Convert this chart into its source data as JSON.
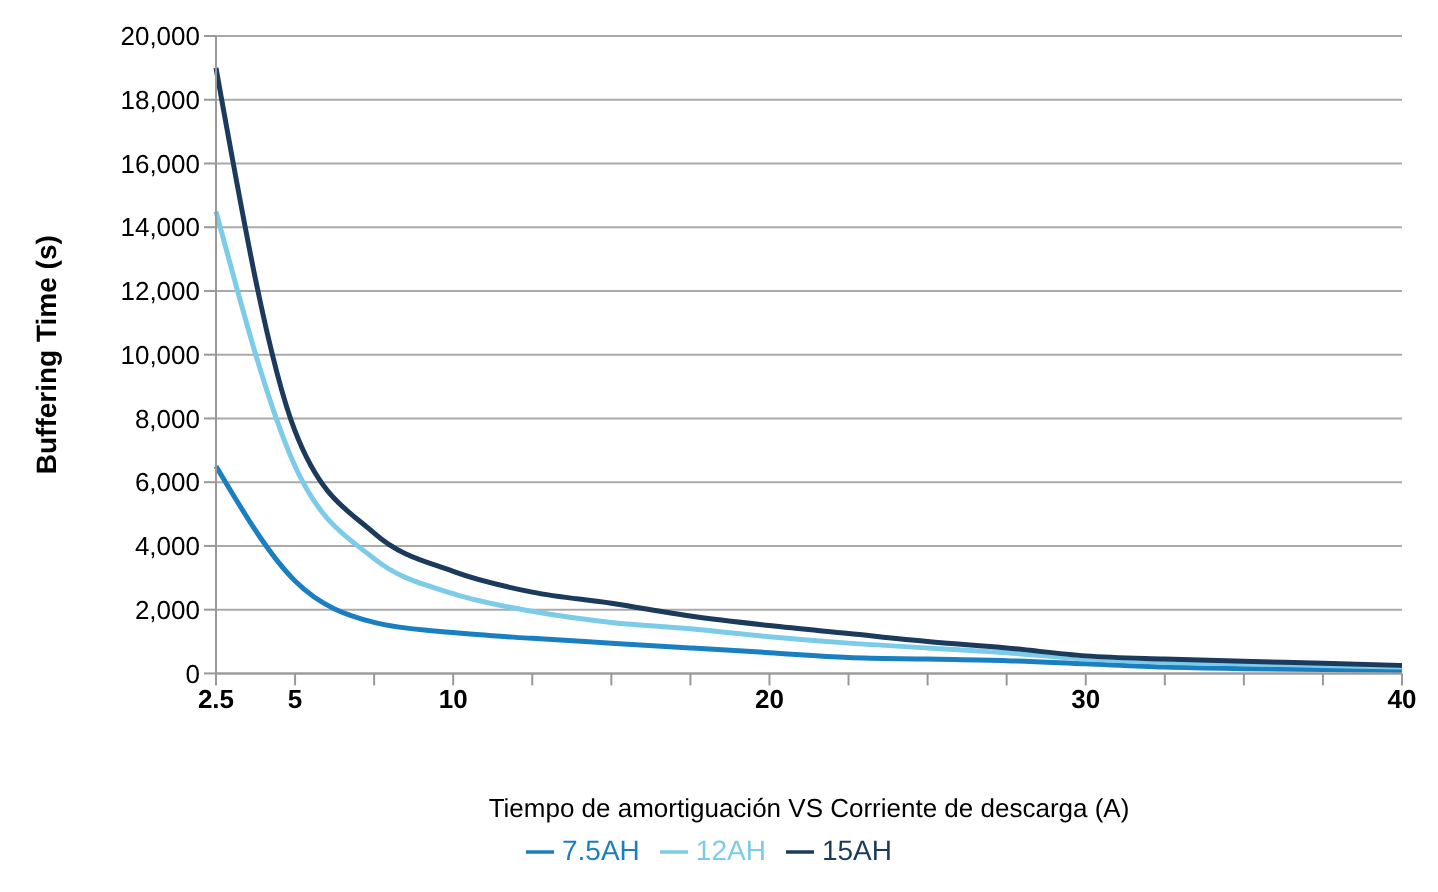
{
  "chart_data": {
    "type": "line",
    "xlabel": "Tiempo de amortiguación VS Corriente de descarga (A)",
    "ylabel": "Buffering Time (s)",
    "categories": [
      "2.5",
      "5",
      null,
      "10",
      null,
      null,
      null,
      "20",
      null,
      null,
      null,
      "30",
      null,
      null,
      null,
      "40"
    ],
    "series": [
      {
        "name": "7.5AH",
        "color": "#1a7fc1",
        "values": [
          6500,
          2900,
          1600,
          1280,
          1100,
          950,
          800,
          650,
          500,
          450,
          400,
          300,
          200,
          150,
          120,
          100
        ]
      },
      {
        "name": "12AH",
        "color": "#7ccbe8",
        "values": [
          14500,
          6500,
          3600,
          2500,
          1950,
          1600,
          1400,
          1150,
          950,
          800,
          650,
          450,
          350,
          300,
          250,
          200
        ]
      },
      {
        "name": "15AH",
        "color": "#1b3a5c",
        "values": [
          19000,
          7600,
          4400,
          3200,
          2550,
          2200,
          1800,
          1500,
          1250,
          1000,
          800,
          550,
          450,
          380,
          320,
          250
        ]
      }
    ],
    "ylim": [
      0,
      20000
    ],
    "yticks": [
      0,
      {
        "value": 2000,
        "label": "2,000"
      },
      {
        "value": 4000,
        "label": "4,000"
      },
      {
        "value": 6000,
        "label": "6,000"
      },
      {
        "value": 8000,
        "label": "8,000"
      },
      {
        "value": 10000,
        "label": "10,000"
      },
      {
        "value": 12000,
        "label": "12,000"
      },
      {
        "value": 14000,
        "label": "14,000"
      },
      {
        "value": 16000,
        "label": "16,000"
      },
      {
        "value": 18000,
        "label": "18,000"
      },
      {
        "value": 20000,
        "label": "20,000"
      }
    ],
    "grid": "y",
    "legend": "bottom",
    "marker": "none",
    "line_style": "solid"
  }
}
